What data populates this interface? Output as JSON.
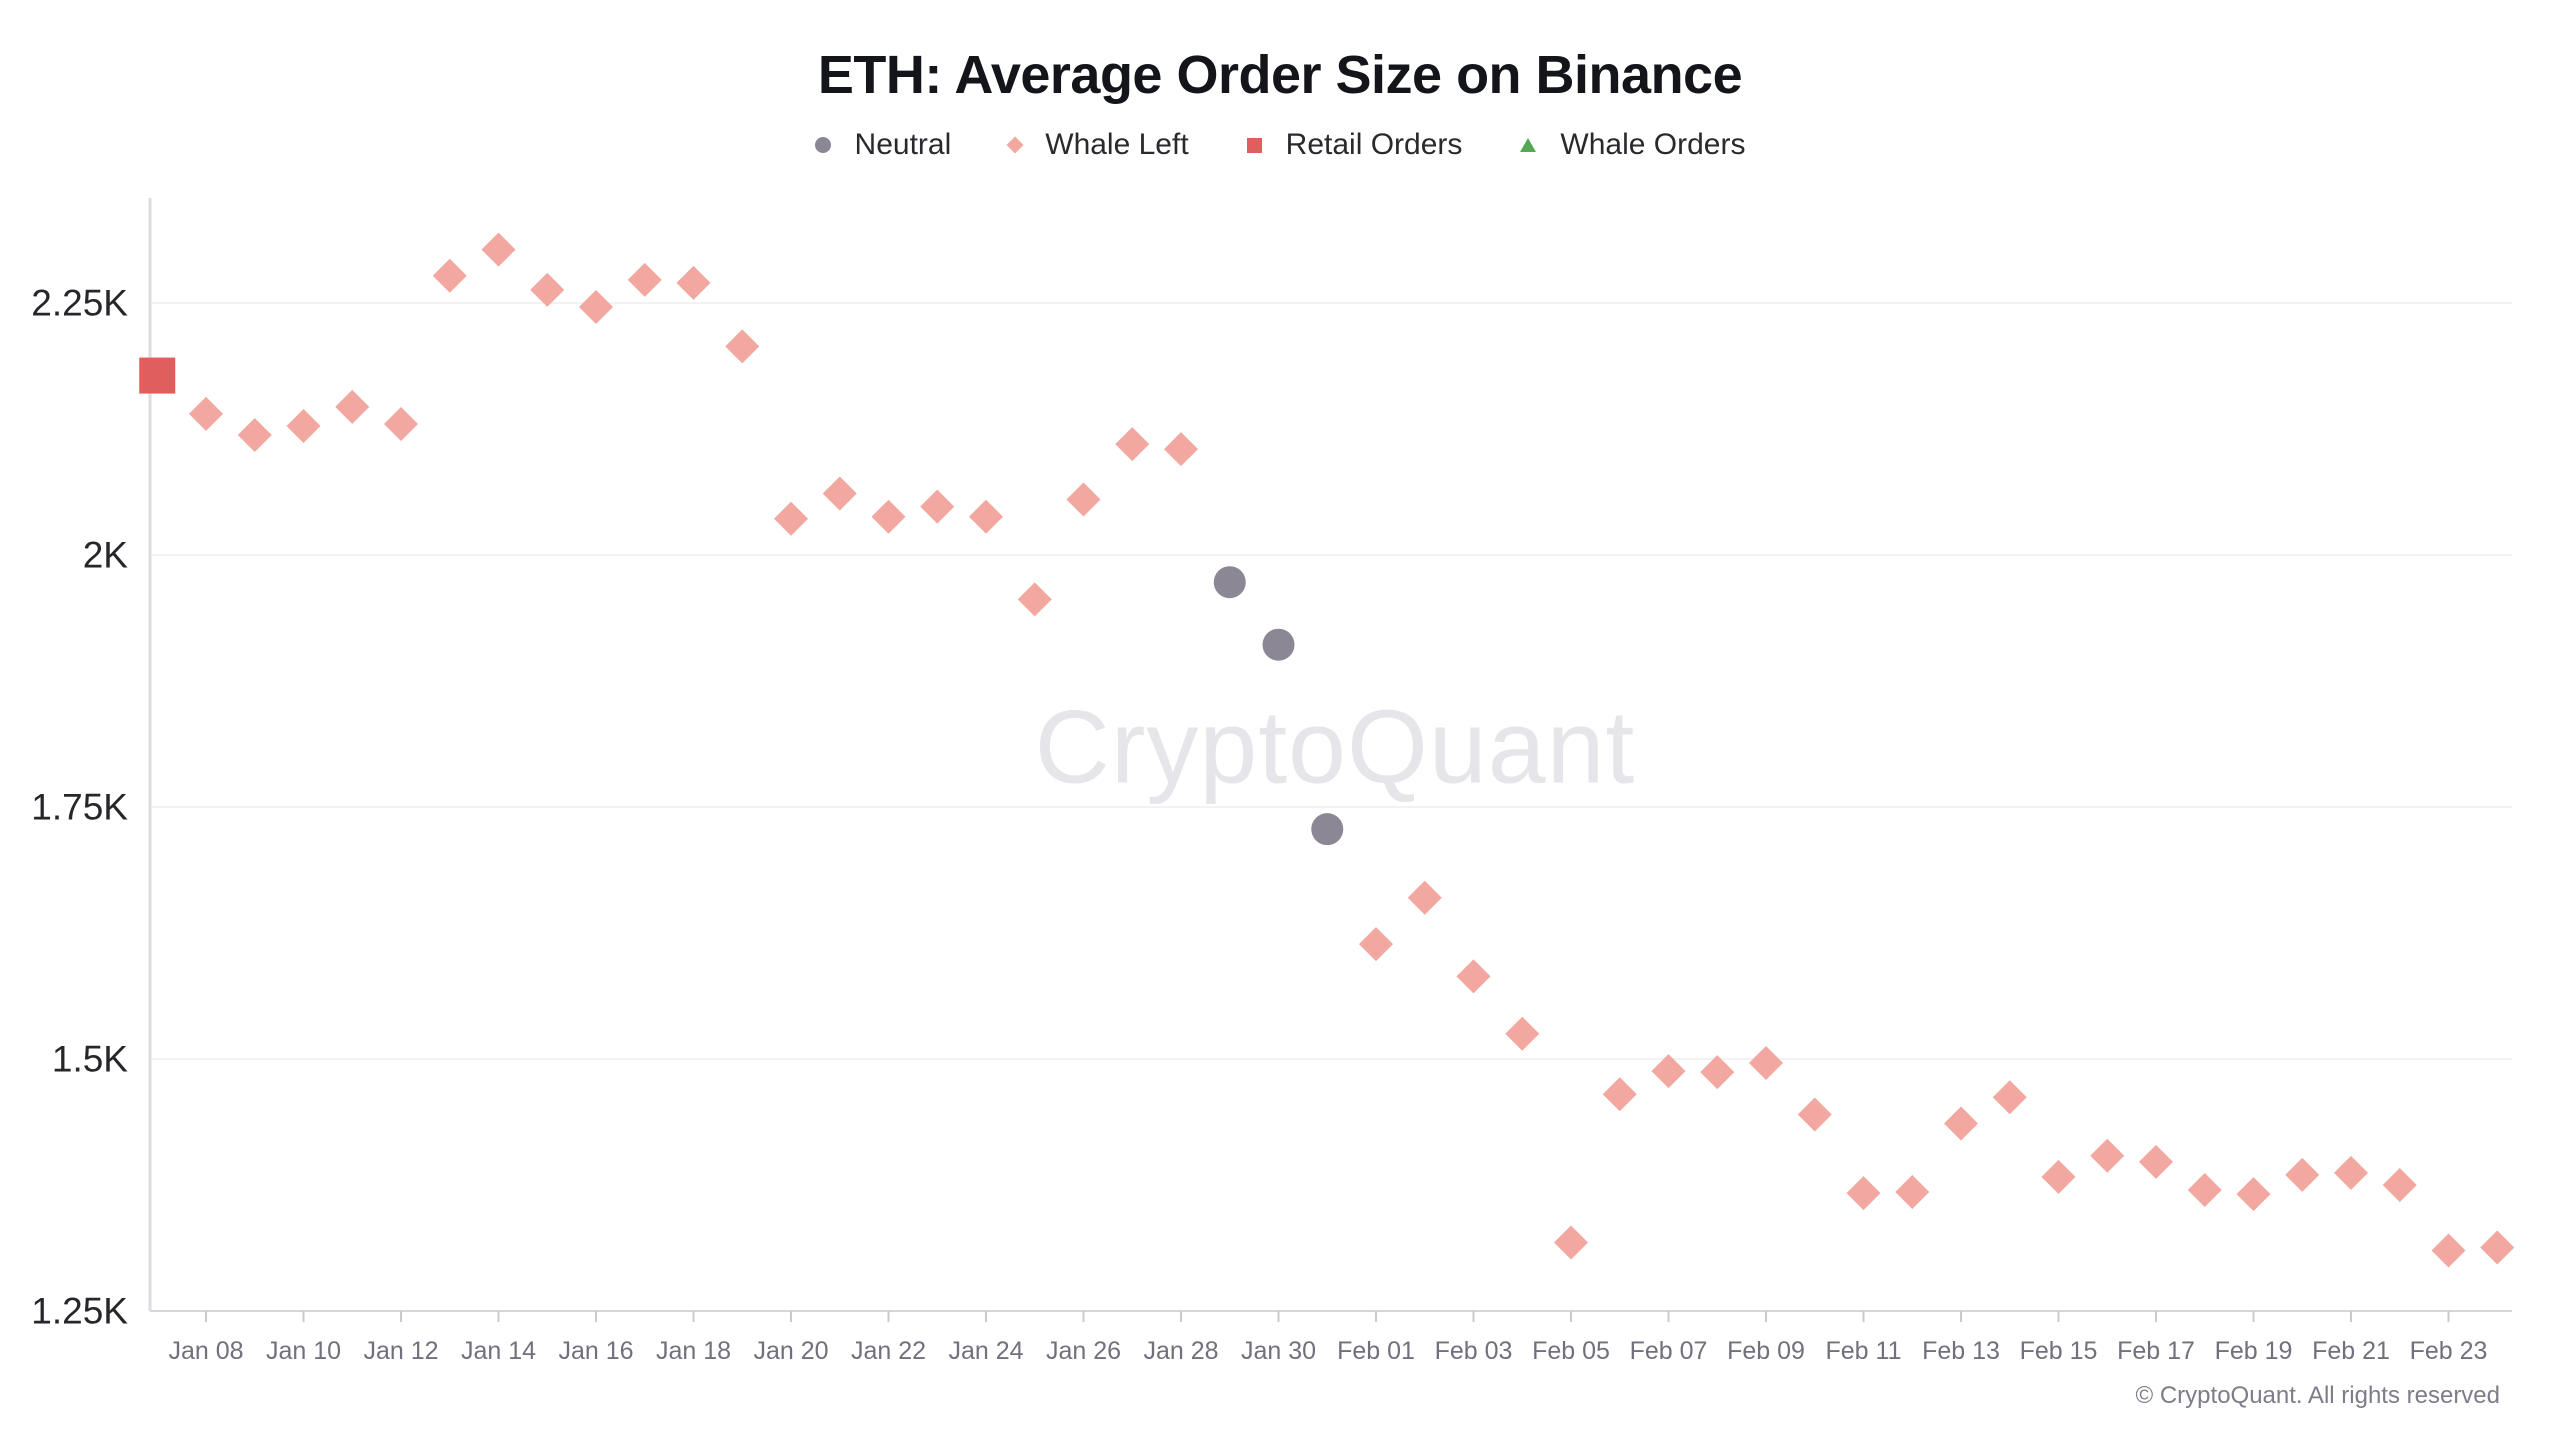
{
  "title": "ETH: Average Order Size on Binance",
  "watermark": "CryptoQuant",
  "footer": "© CryptoQuant. All rights reserved",
  "colors": {
    "neutral": "#8b8794",
    "whale_left": "#f2a7a0",
    "retail": "#e05e5e",
    "whale_orders": "#54a754",
    "gridline": "#f2f2f5",
    "baseline": "#d5d5de",
    "axis_line": "#dcdce4",
    "tick": "#c9c9d4",
    "x_label": "#70717c",
    "y_label": "#26262b"
  },
  "legend": {
    "items": [
      {
        "label": "Neutral",
        "series": "neutral",
        "marker": "circle"
      },
      {
        "label": "Whale Left",
        "series": "whale_left",
        "marker": "diamond"
      },
      {
        "label": "Retail Orders",
        "series": "retail",
        "marker": "square"
      },
      {
        "label": "Whale Orders",
        "series": "whale_orders",
        "marker": "triangle"
      }
    ]
  },
  "chart_data": {
    "type": "scatter",
    "title": "ETH: Average Order Size on Binance",
    "xlabel": "",
    "ylabel": "",
    "ylim": [
      1250,
      2350
    ],
    "grid": "horizontal",
    "legend_position": "top-center",
    "y_ticks": [
      {
        "label": "2.25K",
        "value": 2250
      },
      {
        "label": "2K",
        "value": 2000
      },
      {
        "label": "1.75K",
        "value": 1750
      },
      {
        "label": "1.5K",
        "value": 1500
      },
      {
        "label": "1.25K",
        "value": 1250
      }
    ],
    "x_ticks": [
      {
        "label": "Jan 08",
        "day": 1
      },
      {
        "label": "Jan 10",
        "day": 3
      },
      {
        "label": "Jan 12",
        "day": 5
      },
      {
        "label": "Jan 14",
        "day": 7
      },
      {
        "label": "Jan 16",
        "day": 9
      },
      {
        "label": "Jan 18",
        "day": 11
      },
      {
        "label": "Jan 20",
        "day": 13
      },
      {
        "label": "Jan 22",
        "day": 15
      },
      {
        "label": "Jan 24",
        "day": 17
      },
      {
        "label": "Jan 26",
        "day": 19
      },
      {
        "label": "Jan 28",
        "day": 21
      },
      {
        "label": "Jan 30",
        "day": 23
      },
      {
        "label": "Feb 01",
        "day": 25
      },
      {
        "label": "Feb 03",
        "day": 27
      },
      {
        "label": "Feb 05",
        "day": 29
      },
      {
        "label": "Feb 07",
        "day": 31
      },
      {
        "label": "Feb 09",
        "day": 33
      },
      {
        "label": "Feb 11",
        "day": 35
      },
      {
        "label": "Feb 13",
        "day": 37
      },
      {
        "label": "Feb 15",
        "day": 39
      },
      {
        "label": "Feb 17",
        "day": 41
      },
      {
        "label": "Feb 19",
        "day": 43
      },
      {
        "label": "Feb 21",
        "day": 45
      },
      {
        "label": "Feb 23",
        "day": 47
      }
    ],
    "points": [
      {
        "date": "Jan 07",
        "day": 0,
        "value": 2178,
        "series": "retail"
      },
      {
        "date": "Jan 08",
        "day": 1,
        "value": 2140,
        "series": "whale_left"
      },
      {
        "date": "Jan 09",
        "day": 2,
        "value": 2119,
        "series": "whale_left"
      },
      {
        "date": "Jan 10",
        "day": 3,
        "value": 2128,
        "series": "whale_left"
      },
      {
        "date": "Jan 11",
        "day": 4,
        "value": 2147,
        "series": "whale_left"
      },
      {
        "date": "Jan 12",
        "day": 5,
        "value": 2130,
        "series": "whale_left"
      },
      {
        "date": "Jan 13",
        "day": 6,
        "value": 2277,
        "series": "whale_left"
      },
      {
        "date": "Jan 14",
        "day": 7,
        "value": 2303,
        "series": "whale_left"
      },
      {
        "date": "Jan 15",
        "day": 8,
        "value": 2263,
        "series": "whale_left"
      },
      {
        "date": "Jan 16",
        "day": 9,
        "value": 2246,
        "series": "whale_left"
      },
      {
        "date": "Jan 17",
        "day": 10,
        "value": 2273,
        "series": "whale_left"
      },
      {
        "date": "Jan 18",
        "day": 11,
        "value": 2270,
        "series": "whale_left"
      },
      {
        "date": "Jan 19",
        "day": 12,
        "value": 2207,
        "series": "whale_left"
      },
      {
        "date": "Jan 20",
        "day": 13,
        "value": 2036,
        "series": "whale_left"
      },
      {
        "date": "Jan 21",
        "day": 14,
        "value": 2061,
        "series": "whale_left"
      },
      {
        "date": "Jan 22",
        "day": 15,
        "value": 2038,
        "series": "whale_left"
      },
      {
        "date": "Jan 23",
        "day": 16,
        "value": 2048,
        "series": "whale_left"
      },
      {
        "date": "Jan 24",
        "day": 17,
        "value": 2038,
        "series": "whale_left"
      },
      {
        "date": "Jan 25",
        "day": 18,
        "value": 1956,
        "series": "whale_left"
      },
      {
        "date": "Jan 26",
        "day": 19,
        "value": 2055,
        "series": "whale_left"
      },
      {
        "date": "Jan 27",
        "day": 20,
        "value": 2110,
        "series": "whale_left"
      },
      {
        "date": "Jan 28",
        "day": 21,
        "value": 2105,
        "series": "whale_left"
      },
      {
        "date": "Jan 29",
        "day": 22,
        "value": 1973,
        "series": "neutral"
      },
      {
        "date": "Jan 30",
        "day": 23,
        "value": 1911,
        "series": "neutral"
      },
      {
        "date": "Jan 31",
        "day": 24,
        "value": 1728,
        "series": "neutral"
      },
      {
        "date": "Feb 01",
        "day": 25,
        "value": 1614,
        "series": "whale_left"
      },
      {
        "date": "Feb 02",
        "day": 26,
        "value": 1660,
        "series": "whale_left"
      },
      {
        "date": "Feb 03",
        "day": 27,
        "value": 1582,
        "series": "whale_left"
      },
      {
        "date": "Feb 04",
        "day": 28,
        "value": 1525,
        "series": "whale_left"
      },
      {
        "date": "Feb 05",
        "day": 29,
        "value": 1318,
        "series": "whale_left"
      },
      {
        "date": "Feb 06",
        "day": 30,
        "value": 1465,
        "series": "whale_left"
      },
      {
        "date": "Feb 07",
        "day": 31,
        "value": 1488,
        "series": "whale_left"
      },
      {
        "date": "Feb 08",
        "day": 32,
        "value": 1487,
        "series": "whale_left"
      },
      {
        "date": "Feb 09",
        "day": 33,
        "value": 1496,
        "series": "whale_left"
      },
      {
        "date": "Feb 10",
        "day": 34,
        "value": 1445,
        "series": "whale_left"
      },
      {
        "date": "Feb 11",
        "day": 35,
        "value": 1367,
        "series": "whale_left"
      },
      {
        "date": "Feb 12",
        "day": 36,
        "value": 1368,
        "series": "whale_left"
      },
      {
        "date": "Feb 13",
        "day": 37,
        "value": 1436,
        "series": "whale_left"
      },
      {
        "date": "Feb 14",
        "day": 38,
        "value": 1462,
        "series": "whale_left"
      },
      {
        "date": "Feb 15",
        "day": 39,
        "value": 1383,
        "series": "whale_left"
      },
      {
        "date": "Feb 16",
        "day": 40,
        "value": 1404,
        "series": "whale_left"
      },
      {
        "date": "Feb 17",
        "day": 41,
        "value": 1398,
        "series": "whale_left"
      },
      {
        "date": "Feb 18",
        "day": 42,
        "value": 1370,
        "series": "whale_left"
      },
      {
        "date": "Feb 19",
        "day": 43,
        "value": 1366,
        "series": "whale_left"
      },
      {
        "date": "Feb 20",
        "day": 44,
        "value": 1385,
        "series": "whale_left"
      },
      {
        "date": "Feb 21",
        "day": 45,
        "value": 1387,
        "series": "whale_left"
      },
      {
        "date": "Feb 22",
        "day": 46,
        "value": 1375,
        "series": "whale_left"
      },
      {
        "date": "Feb 23",
        "day": 47,
        "value": 1310,
        "series": "whale_left"
      },
      {
        "date": "Feb 24",
        "day": 48,
        "value": 1313,
        "series": "whale_left"
      }
    ]
  }
}
